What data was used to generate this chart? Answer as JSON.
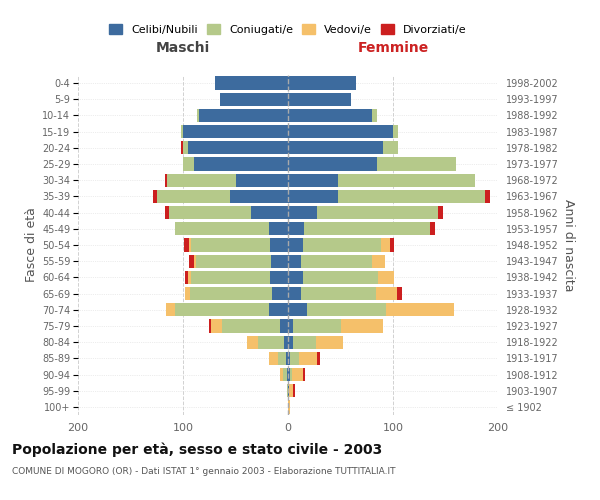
{
  "age_groups": [
    "100+",
    "95-99",
    "90-94",
    "85-89",
    "80-84",
    "75-79",
    "70-74",
    "65-69",
    "60-64",
    "55-59",
    "50-54",
    "45-49",
    "40-44",
    "35-39",
    "30-34",
    "25-29",
    "20-24",
    "15-19",
    "10-14",
    "5-9",
    "0-4"
  ],
  "birth_years": [
    "≤ 1902",
    "1903-1907",
    "1908-1912",
    "1913-1917",
    "1918-1922",
    "1923-1927",
    "1928-1932",
    "1933-1937",
    "1938-1942",
    "1943-1947",
    "1948-1952",
    "1953-1957",
    "1958-1962",
    "1963-1967",
    "1968-1972",
    "1973-1977",
    "1978-1982",
    "1983-1987",
    "1988-1992",
    "1993-1997",
    "1998-2002"
  ],
  "male_celibi": [
    0,
    0,
    1,
    2,
    4,
    8,
    18,
    15,
    17,
    16,
    17,
    18,
    35,
    55,
    50,
    90,
    95,
    100,
    85,
    65,
    70
  ],
  "male_coniugati": [
    0,
    1,
    4,
    8,
    25,
    55,
    90,
    78,
    75,
    72,
    75,
    90,
    78,
    70,
    65,
    10,
    5,
    2,
    2,
    0,
    0
  ],
  "male_vedovi": [
    0,
    0,
    3,
    8,
    10,
    10,
    8,
    5,
    3,
    2,
    2,
    0,
    0,
    0,
    0,
    0,
    0,
    0,
    0,
    0,
    0
  ],
  "male_divorziati": [
    0,
    0,
    0,
    0,
    0,
    2,
    0,
    0,
    3,
    4,
    5,
    0,
    4,
    4,
    2,
    0,
    2,
    0,
    0,
    0,
    0
  ],
  "female_celibi": [
    0,
    1,
    2,
    2,
    5,
    5,
    18,
    12,
    14,
    12,
    14,
    15,
    28,
    48,
    48,
    85,
    90,
    100,
    80,
    60,
    65
  ],
  "female_coniugati": [
    0,
    0,
    2,
    8,
    22,
    45,
    75,
    72,
    72,
    68,
    75,
    120,
    115,
    140,
    130,
    75,
    15,
    5,
    5,
    0,
    0
  ],
  "female_vedovi": [
    2,
    4,
    10,
    18,
    25,
    40,
    65,
    20,
    15,
    12,
    8,
    0,
    0,
    0,
    0,
    0,
    0,
    0,
    0,
    0,
    0
  ],
  "female_divorziati": [
    0,
    2,
    2,
    2,
    0,
    0,
    0,
    5,
    0,
    0,
    4,
    5,
    5,
    4,
    0,
    0,
    0,
    0,
    0,
    0,
    0
  ],
  "color_celibi": "#3d6b9e",
  "color_coniugati": "#b5c98a",
  "color_vedovi": "#f5c06a",
  "color_divorziati": "#cc1f1f",
  "title": "Popolazione per età, sesso e stato civile - 2003",
  "subtitle": "COMUNE DI MOGORO (OR) - Dati ISTAT 1° gennaio 2003 - Elaborazione TUTTITALIA.IT",
  "ylabel_left": "Fasce di età",
  "ylabel_right": "Anni di nascita",
  "xlabel_left": "Maschi",
  "xlabel_right": "Femmine",
  "xlim": 200,
  "bg_color": "#ffffff",
  "grid_color": "#cccccc",
  "legend_labels": [
    "Celibi/Nubili",
    "Coniugati/e",
    "Vedovi/e",
    "Divorziati/e"
  ]
}
